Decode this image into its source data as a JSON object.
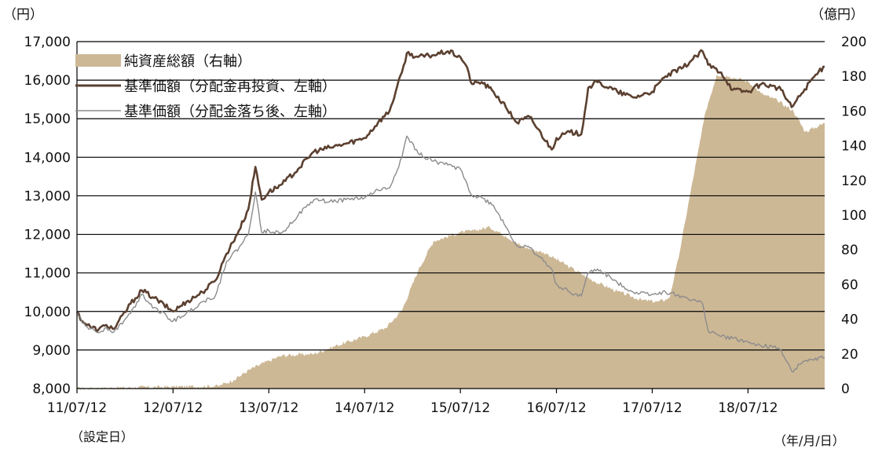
{
  "chart_data": {
    "type": "line",
    "left_axis_unit": "（円）",
    "right_axis_unit": "（億円）",
    "x_unit": "（年/月/日）",
    "start_note": "（設定日）",
    "x_ticks": [
      "11/07/12",
      "12/07/12",
      "13/07/12",
      "14/07/12",
      "15/07/12",
      "16/07/12",
      "17/07/12",
      "18/07/12"
    ],
    "x_range": [
      "2011-07-12",
      "2019-04-30"
    ],
    "left_axis": {
      "min": 8000,
      "max": 17000,
      "step": 1000,
      "ticks": [
        "8,000",
        "9,000",
        "10,000",
        "11,000",
        "12,000",
        "13,000",
        "14,000",
        "15,000",
        "16,000",
        "17,000"
      ]
    },
    "right_axis": {
      "min": 0,
      "max": 200,
      "step": 20,
      "ticks": [
        "0",
        "20",
        "40",
        "60",
        "80",
        "100",
        "120",
        "140",
        "160",
        "180",
        "200"
      ]
    },
    "grid": true,
    "legend_position": "top-left",
    "series": [
      {
        "name": "純資産総額（右軸）",
        "kind": "area",
        "axis": "right",
        "color": "#cdb896",
        "points": [
          [
            "2011-07-12",
            0
          ],
          [
            "2012-01-01",
            0.5
          ],
          [
            "2012-07-12",
            1
          ],
          [
            "2013-01-01",
            1.5
          ],
          [
            "2013-03-01",
            5
          ],
          [
            "2013-05-01",
            11
          ],
          [
            "2013-07-12",
            16
          ],
          [
            "2013-09-01",
            19
          ],
          [
            "2014-01-01",
            20
          ],
          [
            "2014-04-01",
            25
          ],
          [
            "2014-07-12",
            30
          ],
          [
            "2014-10-01",
            35
          ],
          [
            "2014-12-01",
            45
          ],
          [
            "2015-02-01",
            68
          ],
          [
            "2015-04-01",
            85
          ],
          [
            "2015-07-12",
            90
          ],
          [
            "2015-09-01",
            91
          ],
          [
            "2015-11-01",
            93
          ],
          [
            "2016-01-01",
            88
          ],
          [
            "2016-03-01",
            82
          ],
          [
            "2016-06-01",
            78
          ],
          [
            "2016-09-01",
            70
          ],
          [
            "2016-12-01",
            62
          ],
          [
            "2017-03-01",
            56
          ],
          [
            "2017-06-01",
            51
          ],
          [
            "2017-08-01",
            50
          ],
          [
            "2017-09-15",
            52
          ],
          [
            "2017-10-20",
            75
          ],
          [
            "2017-12-01",
            110
          ],
          [
            "2018-02-01",
            160
          ],
          [
            "2018-03-15",
            181
          ],
          [
            "2018-05-01",
            180
          ],
          [
            "2018-07-12",
            177
          ],
          [
            "2018-09-01",
            170
          ],
          [
            "2018-11-01",
            166
          ],
          [
            "2019-01-01",
            160
          ],
          [
            "2019-02-15",
            148
          ],
          [
            "2019-04-30",
            153
          ]
        ]
      },
      {
        "name": "基準価額（分配金再投資、左軸）",
        "kind": "line",
        "axis": "left",
        "color": "#5b4030",
        "points": [
          [
            "2011-07-12",
            10000
          ],
          [
            "2011-08-01",
            9750
          ],
          [
            "2011-09-01",
            9600
          ],
          [
            "2011-10-01",
            9520
          ],
          [
            "2011-11-01",
            9650
          ],
          [
            "2011-12-01",
            9550
          ],
          [
            "2012-02-01",
            10200
          ],
          [
            "2012-03-15",
            10550
          ],
          [
            "2012-05-01",
            10350
          ],
          [
            "2012-07-12",
            10000
          ],
          [
            "2012-09-01",
            10250
          ],
          [
            "2012-11-01",
            10500
          ],
          [
            "2012-12-20",
            10800
          ],
          [
            "2013-02-01",
            11500
          ],
          [
            "2013-03-20",
            12100
          ],
          [
            "2013-04-25",
            12650
          ],
          [
            "2013-05-22",
            13750
          ],
          [
            "2013-06-15",
            12900
          ],
          [
            "2013-07-12",
            13100
          ],
          [
            "2013-09-01",
            13300
          ],
          [
            "2013-11-01",
            13700
          ],
          [
            "2013-12-31",
            14150
          ],
          [
            "2014-03-01",
            14250
          ],
          [
            "2014-05-01",
            14350
          ],
          [
            "2014-07-12",
            14500
          ],
          [
            "2014-09-01",
            14900
          ],
          [
            "2014-10-15",
            15200
          ],
          [
            "2014-12-01",
            16200
          ],
          [
            "2014-12-20",
            16700
          ],
          [
            "2015-02-01",
            16600
          ],
          [
            "2015-04-01",
            16650
          ],
          [
            "2015-05-25",
            16750
          ],
          [
            "2015-07-12",
            16600
          ],
          [
            "2015-08-01",
            16400
          ],
          [
            "2015-08-25",
            15900
          ],
          [
            "2015-10-01",
            15950
          ],
          [
            "2015-11-15",
            15700
          ],
          [
            "2016-01-01",
            15300
          ],
          [
            "2016-02-12",
            14900
          ],
          [
            "2016-04-01",
            15050
          ],
          [
            "2016-06-24",
            14200
          ],
          [
            "2016-07-12",
            14500
          ],
          [
            "2016-09-01",
            14650
          ],
          [
            "2016-10-15",
            14600
          ],
          [
            "2016-11-10",
            15800
          ],
          [
            "2016-12-15",
            15950
          ],
          [
            "2017-03-01",
            15700
          ],
          [
            "2017-05-01",
            15550
          ],
          [
            "2017-07-12",
            15700
          ],
          [
            "2017-09-01",
            16100
          ],
          [
            "2017-11-01",
            16300
          ],
          [
            "2018-01-20",
            16750
          ],
          [
            "2018-02-10",
            16400
          ],
          [
            "2018-04-01",
            16200
          ],
          [
            "2018-05-15",
            15750
          ],
          [
            "2018-07-12",
            15700
          ],
          [
            "2018-09-01",
            15900
          ],
          [
            "2018-10-10",
            15850
          ],
          [
            "2018-11-15",
            15750
          ],
          [
            "2018-12-25",
            15300
          ],
          [
            "2019-02-01",
            15650
          ],
          [
            "2019-03-15",
            16050
          ],
          [
            "2019-04-30",
            16350
          ]
        ]
      },
      {
        "name": "基準価額（分配金落ち後、左軸）",
        "kind": "line",
        "axis": "left",
        "color": "#8b8b8b",
        "points": [
          [
            "2011-07-12",
            10000
          ],
          [
            "2011-08-01",
            9700
          ],
          [
            "2011-09-01",
            9550
          ],
          [
            "2011-10-01",
            9450
          ],
          [
            "2011-11-01",
            9580
          ],
          [
            "2011-12-01",
            9480
          ],
          [
            "2012-02-01",
            9950
          ],
          [
            "2012-03-15",
            10450
          ],
          [
            "2012-05-01",
            10100
          ],
          [
            "2012-07-12",
            9750
          ],
          [
            "2012-09-01",
            9950
          ],
          [
            "2012-11-01",
            10250
          ],
          [
            "2012-12-20",
            10400
          ],
          [
            "2013-02-01",
            11300
          ],
          [
            "2013-03-20",
            11650
          ],
          [
            "2013-04-25",
            12000
          ],
          [
            "2013-05-22",
            13100
          ],
          [
            "2013-06-15",
            12050
          ],
          [
            "2013-07-12",
            12100
          ],
          [
            "2013-09-01",
            12050
          ],
          [
            "2013-11-01",
            12500
          ],
          [
            "2013-12-31",
            12900
          ],
          [
            "2014-03-01",
            12850
          ],
          [
            "2014-05-01",
            12900
          ],
          [
            "2014-07-12",
            12950
          ],
          [
            "2014-09-01",
            13150
          ],
          [
            "2014-10-15",
            13200
          ],
          [
            "2014-12-01",
            14000
          ],
          [
            "2014-12-20",
            14550
          ],
          [
            "2015-02-01",
            14100
          ],
          [
            "2015-04-01",
            13900
          ],
          [
            "2015-05-25",
            13800
          ],
          [
            "2015-07-12",
            13700
          ],
          [
            "2015-08-01",
            13400
          ],
          [
            "2015-08-25",
            13000
          ],
          [
            "2015-10-01",
            12950
          ],
          [
            "2015-11-15",
            12750
          ],
          [
            "2016-01-01",
            12200
          ],
          [
            "2016-02-12",
            11700
          ],
          [
            "2016-04-01",
            11650
          ],
          [
            "2016-06-24",
            11100
          ],
          [
            "2016-07-12",
            10700
          ],
          [
            "2016-09-01",
            10500
          ],
          [
            "2016-10-15",
            10400
          ],
          [
            "2016-11-10",
            11000
          ],
          [
            "2016-12-15",
            11100
          ],
          [
            "2017-03-01",
            10750
          ],
          [
            "2017-05-01",
            10500
          ],
          [
            "2017-07-12",
            10450
          ],
          [
            "2017-09-01",
            10500
          ],
          [
            "2017-11-01",
            10400
          ],
          [
            "2018-01-20",
            10200
          ],
          [
            "2018-02-10",
            9500
          ],
          [
            "2018-04-01",
            9350
          ],
          [
            "2018-05-15",
            9300
          ],
          [
            "2018-07-12",
            9200
          ],
          [
            "2018-09-01",
            9100
          ],
          [
            "2018-10-10",
            9100
          ],
          [
            "2018-11-15",
            9000
          ],
          [
            "2018-12-25",
            8450
          ],
          [
            "2019-02-01",
            8650
          ],
          [
            "2019-03-15",
            8750
          ],
          [
            "2019-04-30",
            8800
          ]
        ]
      }
    ]
  }
}
